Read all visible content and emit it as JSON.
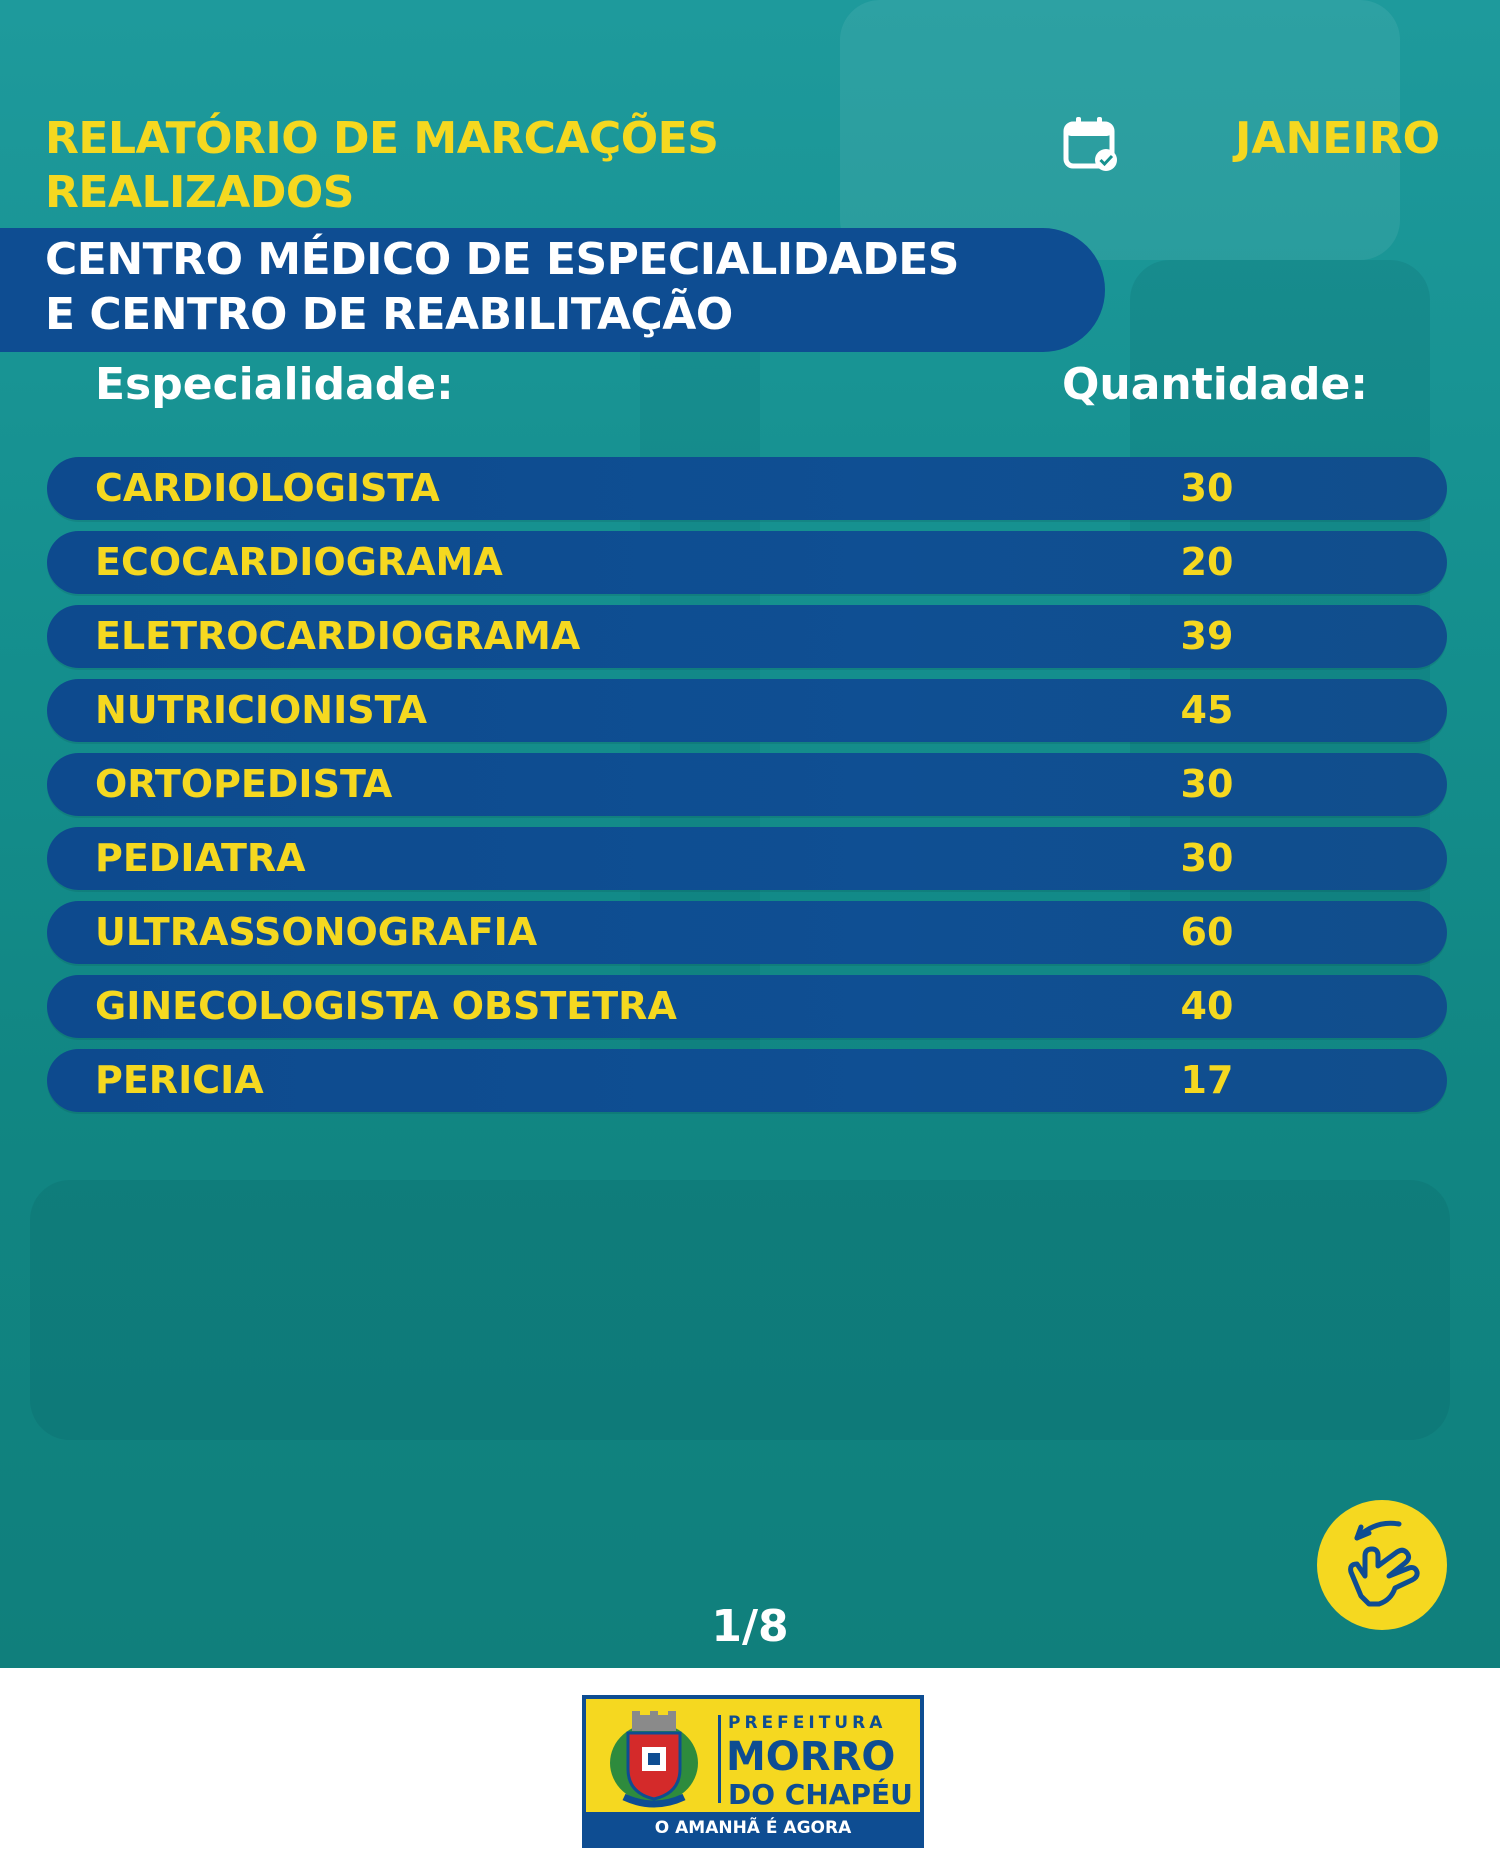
{
  "header": {
    "title_line1": "RELATÓRIO DE MARCAÇÕES",
    "title_line2": "REALIZADOS",
    "month": "JANEIRO",
    "calendar_icon": "calendar-check-icon"
  },
  "banner": {
    "line1": "CENTRO MÉDICO DE ESPECIALIDADES",
    "line2": "E CENTRO DE REABILITAÇÃO"
  },
  "table": {
    "col_specialty": "Especialidade:",
    "col_quantity": "Quantidade:",
    "rows": [
      {
        "name": "CARDIOLOGISTA",
        "value": "30"
      },
      {
        "name": "ECOCARDIOGRAMA",
        "value": "20"
      },
      {
        "name": "ELETROCARDIOGRAMA",
        "value": "39"
      },
      {
        "name": "NUTRICIONISTA",
        "value": "45"
      },
      {
        "name": "ORTOPEDISTA",
        "value": "30"
      },
      {
        "name": "PEDIATRA",
        "value": "30"
      },
      {
        "name": "ULTRASSONOGRAFIA",
        "value": "60"
      },
      {
        "name": "GINECOLOGISTA OBSTETRA",
        "value": "40"
      },
      {
        "name": "PERICIA",
        "value": "17"
      }
    ]
  },
  "pagination": {
    "label": "1/8",
    "swipe_icon": "swipe-hand-icon"
  },
  "footer": {
    "logo_prefeitura": "PREFEITURA",
    "logo_morro": "MORRO",
    "logo_chapeu": "DO CHAPÉU",
    "logo_slogan": "O AMANHÃ É AGORA"
  },
  "colors": {
    "background": "#16918f",
    "accent_yellow": "#f5d820",
    "navy": "#0e4d92"
  }
}
